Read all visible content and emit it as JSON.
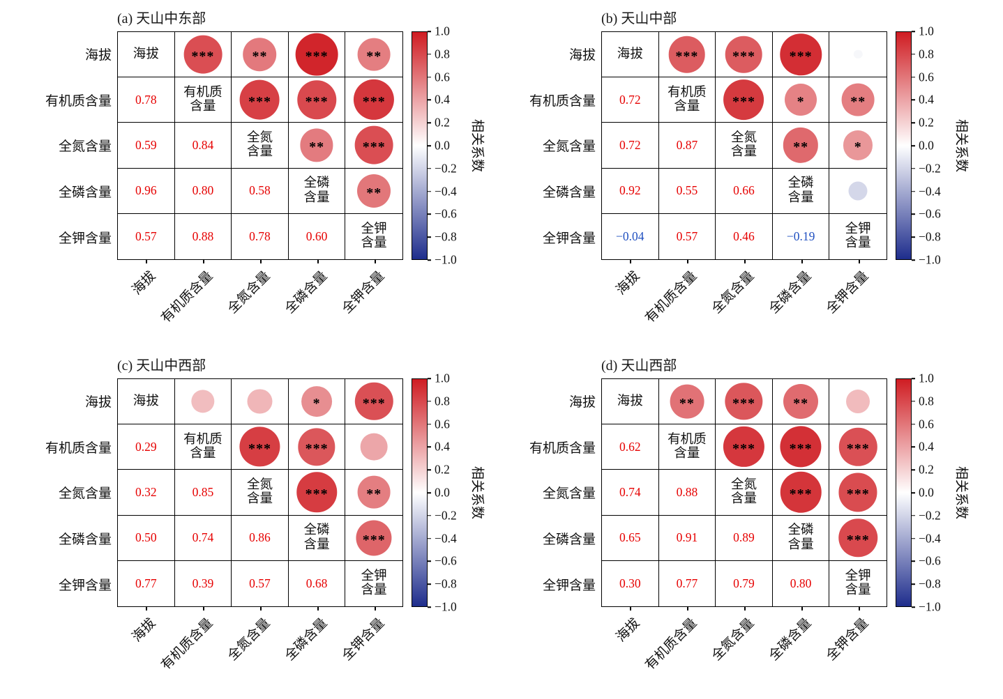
{
  "figure": {
    "background": "#ffffff",
    "text_color_positive": "#e60000",
    "text_color_negative": "#2050c0",
    "colorbar": {
      "label": "相关系数",
      "ticks": [
        "1.0",
        "0.8",
        "0.6",
        "0.4",
        "0.2",
        "0.0",
        "−0.2",
        "−0.4",
        "−0.6",
        "−0.8",
        "−1.0"
      ],
      "max_color": "#cf1c22",
      "min_color": "#1e2d8c",
      "range": [
        -1.0,
        1.0
      ]
    }
  },
  "chart_data": [
    {
      "type": "heatmap",
      "title": "(a) 天山中东部",
      "variables": [
        "海拔",
        "有机质含量",
        "全氮含量",
        "全磷含量",
        "全钾含量"
      ],
      "diagonal_labels": [
        "海拔",
        "有机质\n含量",
        "全氮\n含量",
        "全磷\n含量",
        "全钾\n含量"
      ],
      "legend_label": "相关系数",
      "pairs": [
        {
          "row": 1,
          "col": 0,
          "value": 0.78,
          "stars": "***"
        },
        {
          "row": 2,
          "col": 0,
          "value": 0.59,
          "stars": "**"
        },
        {
          "row": 2,
          "col": 1,
          "value": 0.84,
          "stars": "***"
        },
        {
          "row": 3,
          "col": 0,
          "value": 0.96,
          "stars": "***"
        },
        {
          "row": 3,
          "col": 1,
          "value": 0.8,
          "stars": "***"
        },
        {
          "row": 3,
          "col": 2,
          "value": 0.58,
          "stars": "**"
        },
        {
          "row": 4,
          "col": 0,
          "value": 0.57,
          "stars": "**"
        },
        {
          "row": 4,
          "col": 1,
          "value": 0.88,
          "stars": "***"
        },
        {
          "row": 4,
          "col": 2,
          "value": 0.78,
          "stars": "***"
        },
        {
          "row": 4,
          "col": 3,
          "value": 0.6,
          "stars": "**"
        }
      ]
    },
    {
      "type": "heatmap",
      "title": "(b) 天山中部",
      "variables": [
        "海拔",
        "有机质含量",
        "全氮含量",
        "全磷含量",
        "全钾含量"
      ],
      "diagonal_labels": [
        "海拔",
        "有机质\n含量",
        "全氮\n含量",
        "全磷\n含量",
        "全钾\n含量"
      ],
      "legend_label": "相关系数",
      "pairs": [
        {
          "row": 1,
          "col": 0,
          "value": 0.72,
          "stars": "***"
        },
        {
          "row": 2,
          "col": 0,
          "value": 0.72,
          "stars": "***"
        },
        {
          "row": 2,
          "col": 1,
          "value": 0.87,
          "stars": "***"
        },
        {
          "row": 3,
          "col": 0,
          "value": 0.92,
          "stars": "***"
        },
        {
          "row": 3,
          "col": 1,
          "value": 0.55,
          "stars": "*"
        },
        {
          "row": 3,
          "col": 2,
          "value": 0.66,
          "stars": "**"
        },
        {
          "row": 4,
          "col": 0,
          "value": -0.04,
          "stars": ""
        },
        {
          "row": 4,
          "col": 1,
          "value": 0.57,
          "stars": "**"
        },
        {
          "row": 4,
          "col": 2,
          "value": 0.46,
          "stars": "*"
        },
        {
          "row": 4,
          "col": 3,
          "value": -0.19,
          "stars": ""
        }
      ]
    },
    {
      "type": "heatmap",
      "title": "(c) 天山中西部",
      "variables": [
        "海拔",
        "有机质含量",
        "全氮含量",
        "全磷含量",
        "全钾含量"
      ],
      "diagonal_labels": [
        "海拔",
        "有机质\n含量",
        "全氮\n含量",
        "全磷\n含量",
        "全钾\n含量"
      ],
      "legend_label": "相关系数",
      "pairs": [
        {
          "row": 1,
          "col": 0,
          "value": 0.29,
          "stars": ""
        },
        {
          "row": 2,
          "col": 0,
          "value": 0.32,
          "stars": ""
        },
        {
          "row": 2,
          "col": 1,
          "value": 0.85,
          "stars": "***"
        },
        {
          "row": 3,
          "col": 0,
          "value": 0.5,
          "stars": "*"
        },
        {
          "row": 3,
          "col": 1,
          "value": 0.74,
          "stars": "***"
        },
        {
          "row": 3,
          "col": 2,
          "value": 0.86,
          "stars": "***"
        },
        {
          "row": 4,
          "col": 0,
          "value": 0.77,
          "stars": "***"
        },
        {
          "row": 4,
          "col": 1,
          "value": 0.39,
          "stars": ""
        },
        {
          "row": 4,
          "col": 2,
          "value": 0.57,
          "stars": "**"
        },
        {
          "row": 4,
          "col": 3,
          "value": 0.68,
          "stars": "***"
        }
      ]
    },
    {
      "type": "heatmap",
      "title": "(d) 天山西部",
      "variables": [
        "海拔",
        "有机质含量",
        "全氮含量",
        "全磷含量",
        "全钾含量"
      ],
      "diagonal_labels": [
        "海拔",
        "有机质\n含量",
        "全氮\n含量",
        "全磷\n含量",
        "全钾\n含量"
      ],
      "legend_label": "相关系数",
      "pairs": [
        {
          "row": 1,
          "col": 0,
          "value": 0.62,
          "stars": "**"
        },
        {
          "row": 2,
          "col": 0,
          "value": 0.74,
          "stars": "***"
        },
        {
          "row": 2,
          "col": 1,
          "value": 0.88,
          "stars": "***"
        },
        {
          "row": 3,
          "col": 0,
          "value": 0.65,
          "stars": "**"
        },
        {
          "row": 3,
          "col": 1,
          "value": 0.91,
          "stars": "***"
        },
        {
          "row": 3,
          "col": 2,
          "value": 0.89,
          "stars": "***"
        },
        {
          "row": 4,
          "col": 0,
          "value": 0.3,
          "stars": ""
        },
        {
          "row": 4,
          "col": 1,
          "value": 0.77,
          "stars": "***"
        },
        {
          "row": 4,
          "col": 2,
          "value": 0.79,
          "stars": "***"
        },
        {
          "row": 4,
          "col": 3,
          "value": 0.8,
          "stars": "***"
        }
      ]
    }
  ]
}
